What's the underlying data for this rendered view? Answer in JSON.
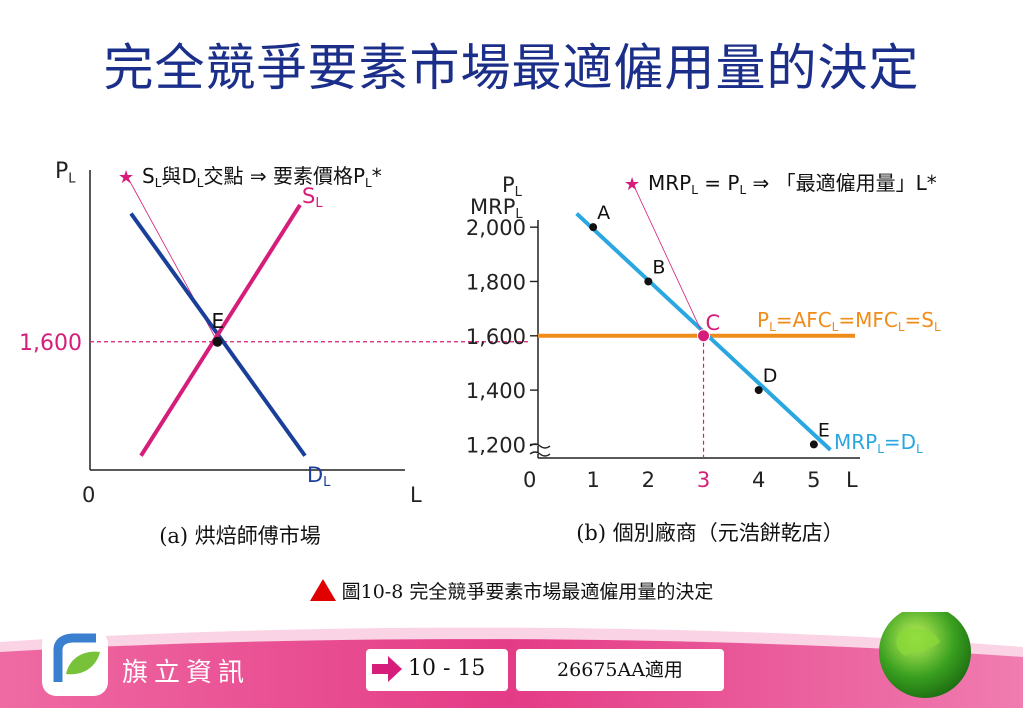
{
  "title": "完全競爭要素市場最適僱用量的決定",
  "caption": "圖10-8  完全競爭要素市場最適僱用量的決定",
  "footer": {
    "brand": "旗立資訊",
    "page": "10 - 15",
    "book": "26675AA適用"
  },
  "colors": {
    "title": "#1b2f8a",
    "demand": "#1a3f9a",
    "supply": "#d61d7a",
    "mrp": "#2aa7e0",
    "wage": "#f08c1a",
    "footer": "#e43b86"
  },
  "chart_data": [
    {
      "type": "line",
      "subtitle": "(a) 烘焙師傅市場",
      "ylabel": "P",
      "ylabel_sub": "L",
      "xlabel": "L",
      "origin_label": "0",
      "annotation": {
        "star": "★",
        "parts": [
          "S",
          "L",
          "與D",
          "L",
          "交點 ⇒ 要素價格P",
          "L",
          "*"
        ]
      },
      "ylim": [
        1150,
        2150
      ],
      "xlim": [
        0,
        6
      ],
      "yticks": [
        {
          "value": 1600,
          "label": "1,600"
        }
      ],
      "series": [
        {
          "name": "D",
          "name_sub": "L",
          "points": [
            [
              0.82,
              2050
            ],
            [
              4.3,
              1200
            ]
          ]
        },
        {
          "name": "S",
          "name_sub": "L",
          "points": [
            [
              1.02,
              1200
            ],
            [
              4.2,
              2080
            ]
          ]
        }
      ],
      "equilibrium": {
        "label": "E",
        "x": 2.55,
        "y": 1600
      }
    },
    {
      "type": "line",
      "subtitle": "(b) 個別廠商（元浩餅乾店）",
      "ylabel": "P",
      "ylabel_sub": "L",
      "ylabel2": "MRP",
      "ylabel2_sub": "L",
      "xlabel": "L",
      "origin_label": "0",
      "annotation": {
        "star": "★",
        "parts": [
          "MRP",
          "L",
          " = P",
          "L",
          " ⇒ 「最適僱用量」L*"
        ]
      },
      "x": [
        1,
        2,
        3,
        4,
        5
      ],
      "xticks": [
        "1",
        "2",
        "3",
        "4",
        "5"
      ],
      "ylim": [
        1150,
        2100
      ],
      "xlim": [
        0,
        5.8
      ],
      "yticks": [
        {
          "value": 1200,
          "label": "1,200"
        },
        {
          "value": 1400,
          "label": "1,400"
        },
        {
          "value": 1600,
          "label": "1,600"
        },
        {
          "value": 1800,
          "label": "1,800"
        },
        {
          "value": 2000,
          "label": "2,000"
        }
      ],
      "mrp_line": {
        "name": "MRP",
        "parts": [
          "MRP",
          "L",
          "=D",
          "L"
        ],
        "points": [
          [
            0.7,
            2050
          ],
          [
            5.3,
            1180
          ]
        ]
      },
      "wage_line": {
        "parts": [
          "P",
          "L",
          "=AFC",
          "L",
          "=MFC",
          "L",
          "=S",
          "L"
        ],
        "value": 1600
      },
      "points": [
        {
          "label": "A",
          "x": 1,
          "y": 2000
        },
        {
          "label": "B",
          "x": 2,
          "y": 1800
        },
        {
          "label": "C",
          "x": 3,
          "y": 1600
        },
        {
          "label": "D",
          "x": 4,
          "y": 1400
        },
        {
          "label": "E",
          "x": 5,
          "y": 1200
        }
      ],
      "optimum_x": 3
    }
  ]
}
